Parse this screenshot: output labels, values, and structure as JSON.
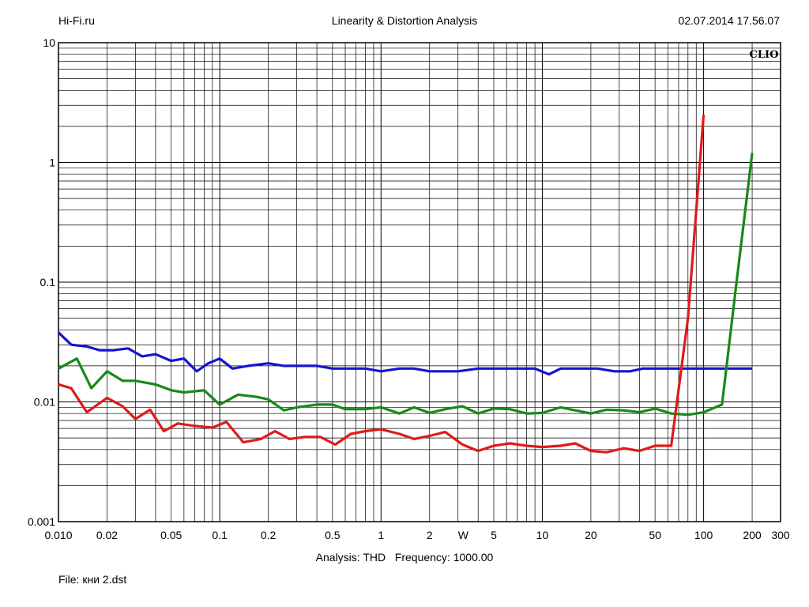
{
  "header": {
    "site": "Hi-Fi.ru",
    "title": "Linearity & Distortion Analysis",
    "timestamp": "02.07.2014 17.56.07"
  },
  "watermark": "CLIO",
  "footer": {
    "analysis_label": "Analysis:",
    "analysis_value": "THD",
    "frequency_label": "Frequency:",
    "frequency_value": "1000.00",
    "file_label": "File:",
    "file_value": "кни 2.dst"
  },
  "chart_data": {
    "type": "line",
    "title": "Linearity & Distortion Analysis",
    "xlabel": "W",
    "ylabel": "",
    "xscale": "log",
    "yscale": "log",
    "xlim": [
      0.01,
      300
    ],
    "ylim": [
      0.001,
      10
    ],
    "grid": true,
    "x_ticks": [
      "0.010",
      "0.02",
      "0.05",
      "0.1",
      "0.2",
      "0.5",
      "1",
      "2",
      "5",
      "10",
      "20",
      "50",
      "100",
      "200",
      "300"
    ],
    "y_ticks": [
      "0.001",
      "0.01",
      "0.1",
      "1",
      "10"
    ],
    "series": [
      {
        "color": "#1515d0",
        "points": [
          [
            0.01,
            0.038
          ],
          [
            0.012,
            0.03
          ],
          [
            0.015,
            0.029
          ],
          [
            0.018,
            0.027
          ],
          [
            0.022,
            0.027
          ],
          [
            0.027,
            0.028
          ],
          [
            0.033,
            0.024
          ],
          [
            0.04,
            0.025
          ],
          [
            0.05,
            0.022
          ],
          [
            0.06,
            0.023
          ],
          [
            0.072,
            0.018
          ],
          [
            0.085,
            0.021
          ],
          [
            0.1,
            0.023
          ],
          [
            0.12,
            0.019
          ],
          [
            0.15,
            0.02
          ],
          [
            0.2,
            0.021
          ],
          [
            0.25,
            0.02
          ],
          [
            0.3,
            0.02
          ],
          [
            0.4,
            0.02
          ],
          [
            0.5,
            0.019
          ],
          [
            0.6,
            0.019
          ],
          [
            0.8,
            0.019
          ],
          [
            1.0,
            0.018
          ],
          [
            1.3,
            0.019
          ],
          [
            1.6,
            0.019
          ],
          [
            2.0,
            0.018
          ],
          [
            2.5,
            0.018
          ],
          [
            3.0,
            0.018
          ],
          [
            4.0,
            0.019
          ],
          [
            5.0,
            0.019
          ],
          [
            6.0,
            0.019
          ],
          [
            7.5,
            0.019
          ],
          [
            9.0,
            0.019
          ],
          [
            11.0,
            0.017
          ],
          [
            13.0,
            0.019
          ],
          [
            15.0,
            0.019
          ],
          [
            18.0,
            0.019
          ],
          [
            22.0,
            0.019
          ],
          [
            28.0,
            0.018
          ],
          [
            35.0,
            0.018
          ],
          [
            42.0,
            0.019
          ],
          [
            50.0,
            0.019
          ],
          [
            60.0,
            0.019
          ],
          [
            75.0,
            0.019
          ],
          [
            90.0,
            0.019
          ],
          [
            110.0,
            0.019
          ],
          [
            130.0,
            0.019
          ],
          [
            160.0,
            0.019
          ],
          [
            200.0,
            0.019
          ]
        ]
      },
      {
        "color": "#178a17",
        "points": [
          [
            0.01,
            0.019
          ],
          [
            0.013,
            0.023
          ],
          [
            0.016,
            0.013
          ],
          [
            0.02,
            0.018
          ],
          [
            0.025,
            0.015
          ],
          [
            0.03,
            0.015
          ],
          [
            0.04,
            0.014
          ],
          [
            0.05,
            0.0125
          ],
          [
            0.06,
            0.012
          ],
          [
            0.08,
            0.0125
          ],
          [
            0.1,
            0.0095
          ],
          [
            0.13,
            0.0115
          ],
          [
            0.17,
            0.011
          ],
          [
            0.2,
            0.0105
          ],
          [
            0.25,
            0.0085
          ],
          [
            0.3,
            0.009
          ],
          [
            0.4,
            0.0095
          ],
          [
            0.5,
            0.0095
          ],
          [
            0.6,
            0.0087
          ],
          [
            0.8,
            0.0087
          ],
          [
            1.0,
            0.009
          ],
          [
            1.3,
            0.008
          ],
          [
            1.6,
            0.009
          ],
          [
            2.0,
            0.0081
          ],
          [
            2.5,
            0.0087
          ],
          [
            3.2,
            0.0092
          ],
          [
            4.0,
            0.008
          ],
          [
            5.0,
            0.0088
          ],
          [
            6.3,
            0.0087
          ],
          [
            8.0,
            0.008
          ],
          [
            10.0,
            0.0081
          ],
          [
            13.0,
            0.009
          ],
          [
            16.0,
            0.0085
          ],
          [
            20.0,
            0.008
          ],
          [
            25.0,
            0.0086
          ],
          [
            32.0,
            0.0085
          ],
          [
            40.0,
            0.0082
          ],
          [
            50.0,
            0.0088
          ],
          [
            63.0,
            0.008
          ],
          [
            80.0,
            0.0078
          ],
          [
            100.0,
            0.0082
          ],
          [
            130.0,
            0.0095
          ],
          [
            160.0,
            0.1
          ],
          [
            200.0,
            1.2
          ]
        ]
      },
      {
        "color": "#e01a1a",
        "points": [
          [
            0.01,
            0.014
          ],
          [
            0.012,
            0.013
          ],
          [
            0.015,
            0.0082
          ],
          [
            0.02,
            0.0108
          ],
          [
            0.025,
            0.0092
          ],
          [
            0.03,
            0.0072
          ],
          [
            0.037,
            0.0086
          ],
          [
            0.045,
            0.0057
          ],
          [
            0.055,
            0.0066
          ],
          [
            0.07,
            0.0063
          ],
          [
            0.09,
            0.0061
          ],
          [
            0.11,
            0.0068
          ],
          [
            0.14,
            0.0046
          ],
          [
            0.18,
            0.0049
          ],
          [
            0.22,
            0.0057
          ],
          [
            0.27,
            0.0049
          ],
          [
            0.34,
            0.0051
          ],
          [
            0.42,
            0.0051
          ],
          [
            0.52,
            0.0044
          ],
          [
            0.65,
            0.0054
          ],
          [
            0.8,
            0.0057
          ],
          [
            1.0,
            0.0059
          ],
          [
            1.3,
            0.0054
          ],
          [
            1.6,
            0.0049
          ],
          [
            2.0,
            0.0052
          ],
          [
            2.5,
            0.0056
          ],
          [
            3.2,
            0.0044
          ],
          [
            4.0,
            0.0039
          ],
          [
            5.0,
            0.0043
          ],
          [
            6.3,
            0.0045
          ],
          [
            8.0,
            0.0043
          ],
          [
            10.0,
            0.0042
          ],
          [
            13.0,
            0.0043
          ],
          [
            16.0,
            0.0045
          ],
          [
            20.0,
            0.0039
          ],
          [
            25.0,
            0.0038
          ],
          [
            32.0,
            0.0041
          ],
          [
            40.0,
            0.0039
          ],
          [
            50.0,
            0.0043
          ],
          [
            63.0,
            0.0043
          ],
          [
            80.0,
            0.05
          ],
          [
            100.0,
            2.5
          ]
        ]
      }
    ]
  }
}
